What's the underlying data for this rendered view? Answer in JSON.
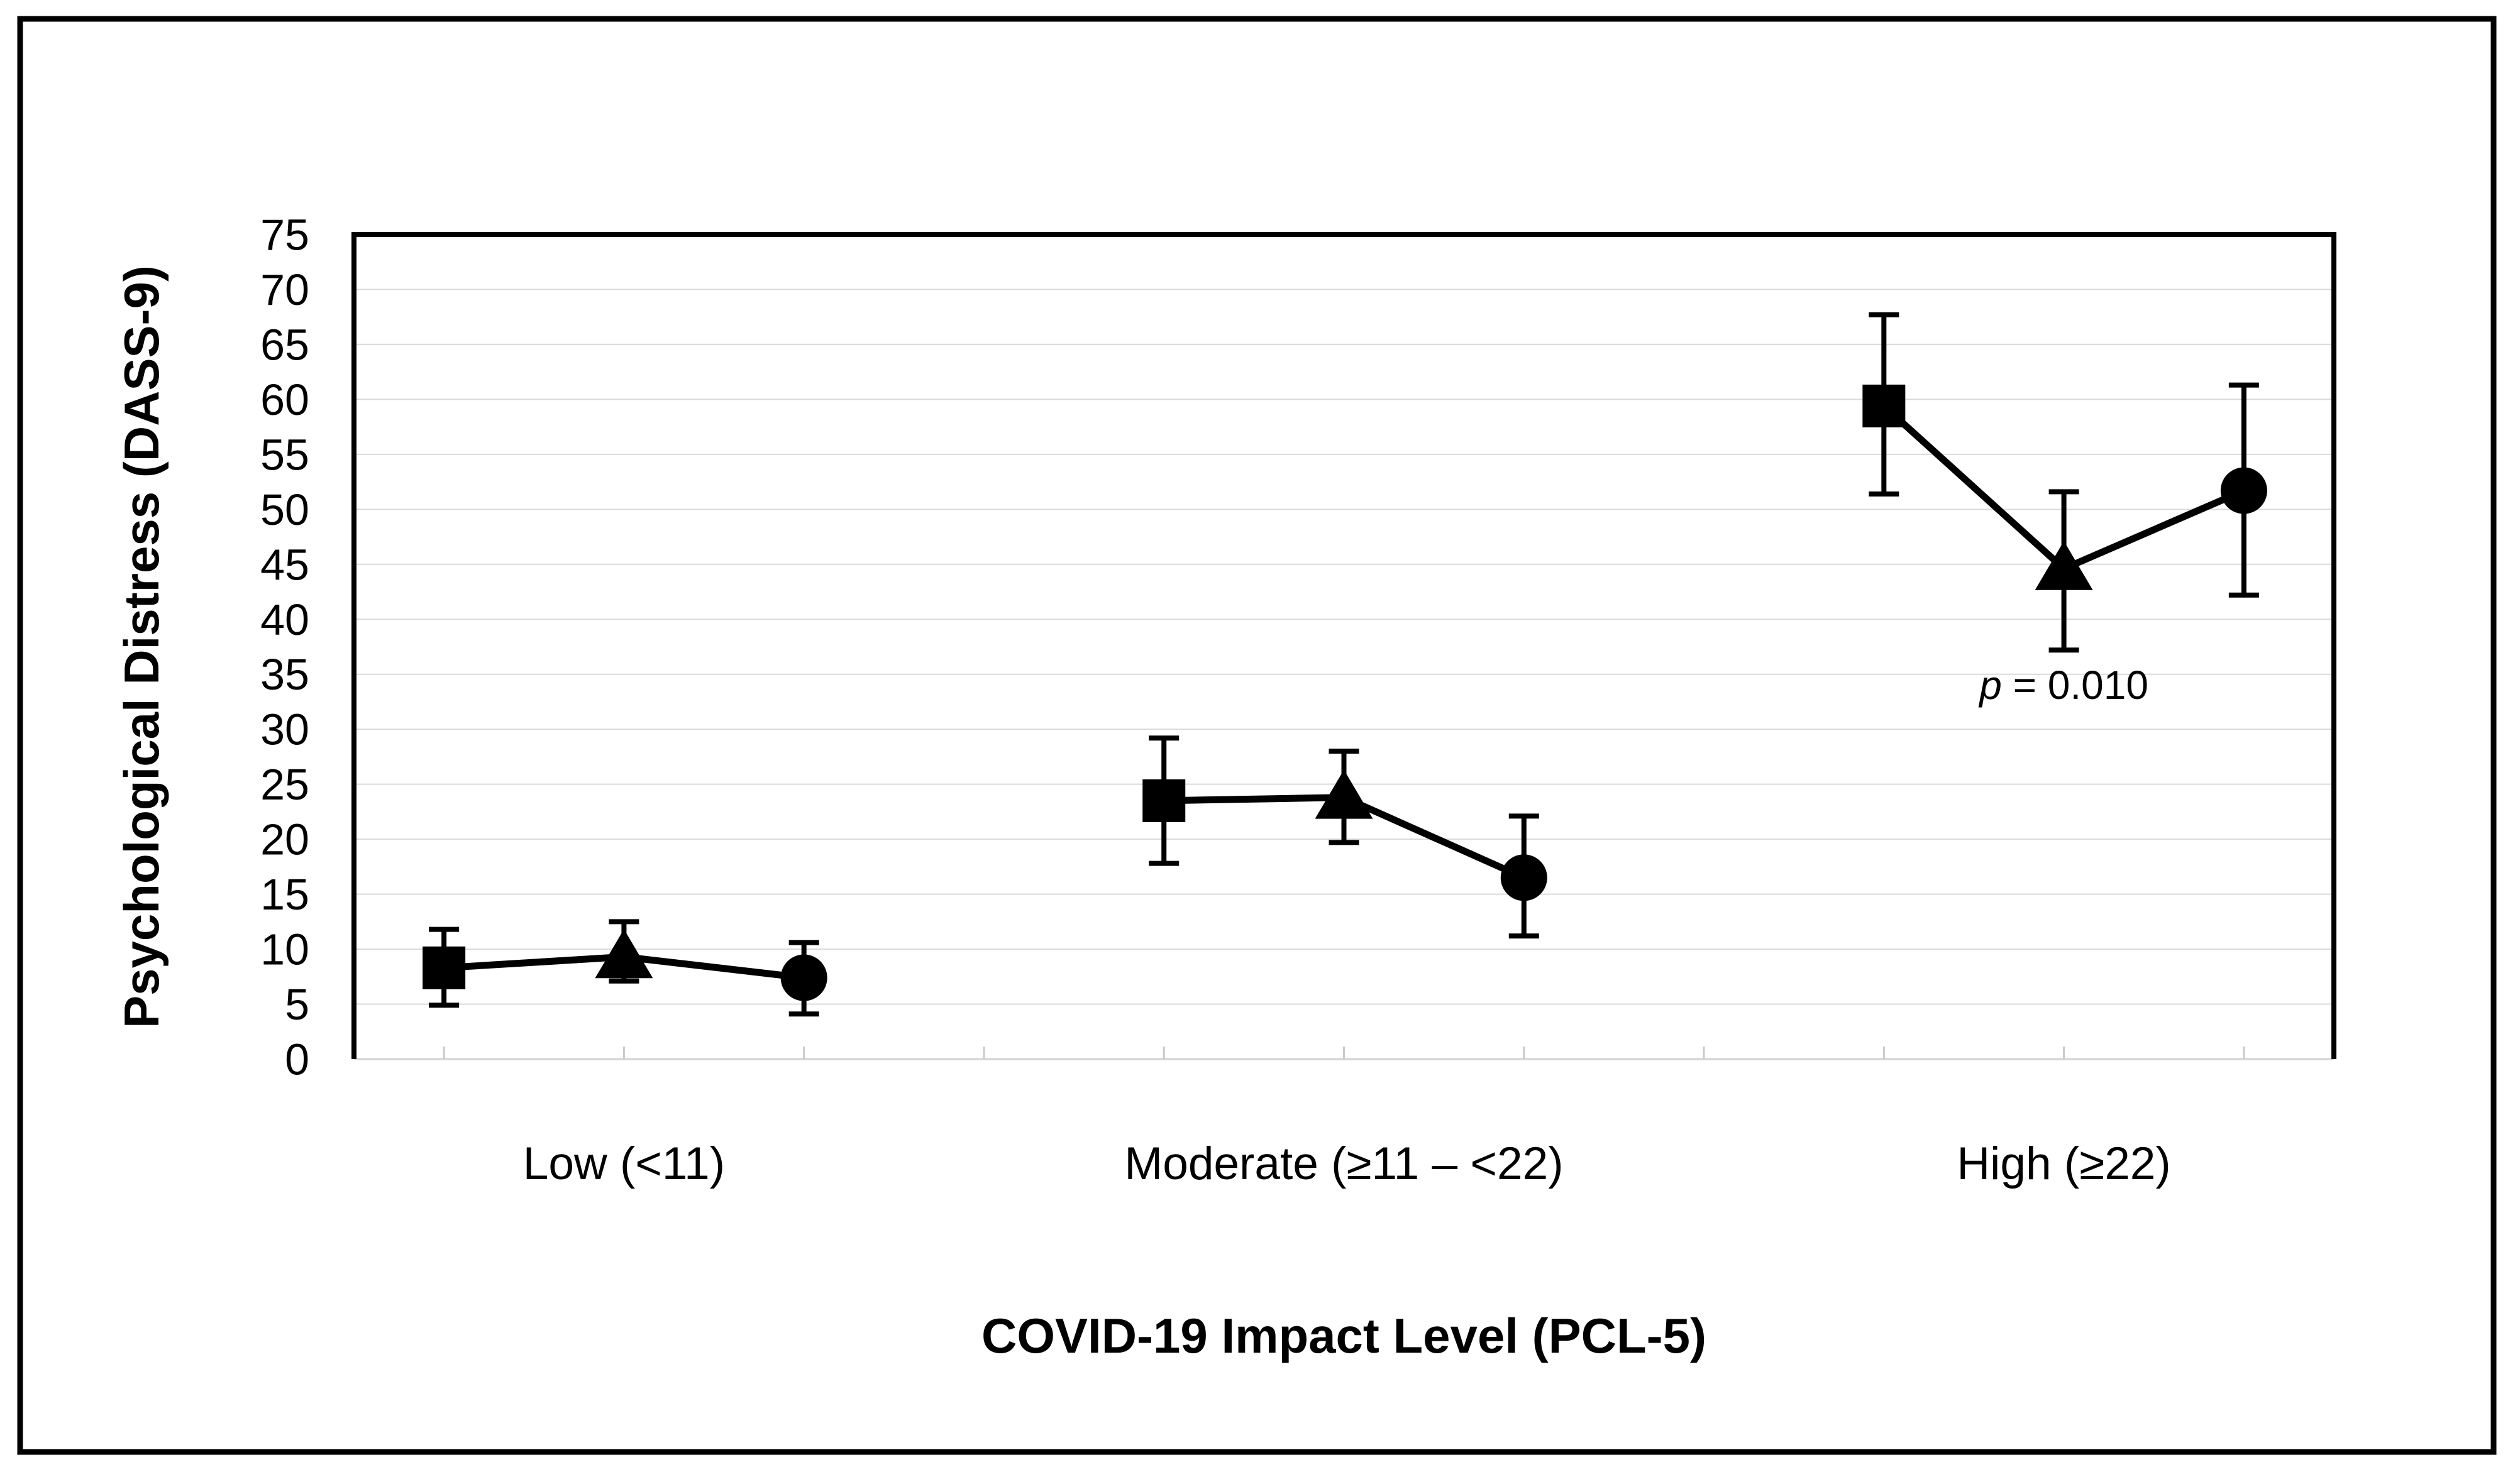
{
  "figure": {
    "background": "#ffffff",
    "outer_border_color": "#000000",
    "plot_border_color": "#000000",
    "gridline_color": "#d9d9d9",
    "axis_line_color": "#d9d9d9",
    "marker_color": "#000000"
  },
  "chart_data": {
    "type": "line",
    "title": "",
    "xlabel": "COVID-19 Impact Level (PCL-5)",
    "ylabel": "Psychological Distress (DASS-9)",
    "ylim": [
      0,
      75
    ],
    "yticks": [
      0,
      5,
      10,
      15,
      20,
      25,
      30,
      35,
      40,
      45,
      50,
      55,
      60,
      65,
      70,
      75
    ],
    "grid": "horizontal",
    "legend_position": "none",
    "categories": [
      "Low (<11)",
      "Moderate (≥11 – <22)",
      "High (≥22)"
    ],
    "series": [
      {
        "name": "square-marker-series",
        "marker": "square",
        "values": [
          8.3,
          23.5,
          59.4
        ],
        "err_low": [
          4.9,
          17.8,
          51.4
        ],
        "err_high": [
          11.8,
          29.2,
          67.7
        ]
      },
      {
        "name": "triangle-marker-series",
        "marker": "triangle",
        "values": [
          9.3,
          23.8,
          44.6
        ],
        "err_low": [
          7.1,
          19.7,
          37.2
        ],
        "err_high": [
          12.5,
          28.0,
          51.6
        ]
      },
      {
        "name": "circle-marker-series",
        "marker": "circle",
        "values": [
          7.4,
          16.5,
          51.7
        ],
        "err_low": [
          4.1,
          11.2,
          42.2
        ],
        "err_high": [
          10.6,
          22.1,
          61.3
        ]
      }
    ],
    "annotations": [
      {
        "text": "p = 0.010",
        "italic_part": "p",
        "rest_part": " = 0.010",
        "category_index": 2,
        "attached_series": "triangle-marker-series",
        "y": 34
      }
    ]
  }
}
